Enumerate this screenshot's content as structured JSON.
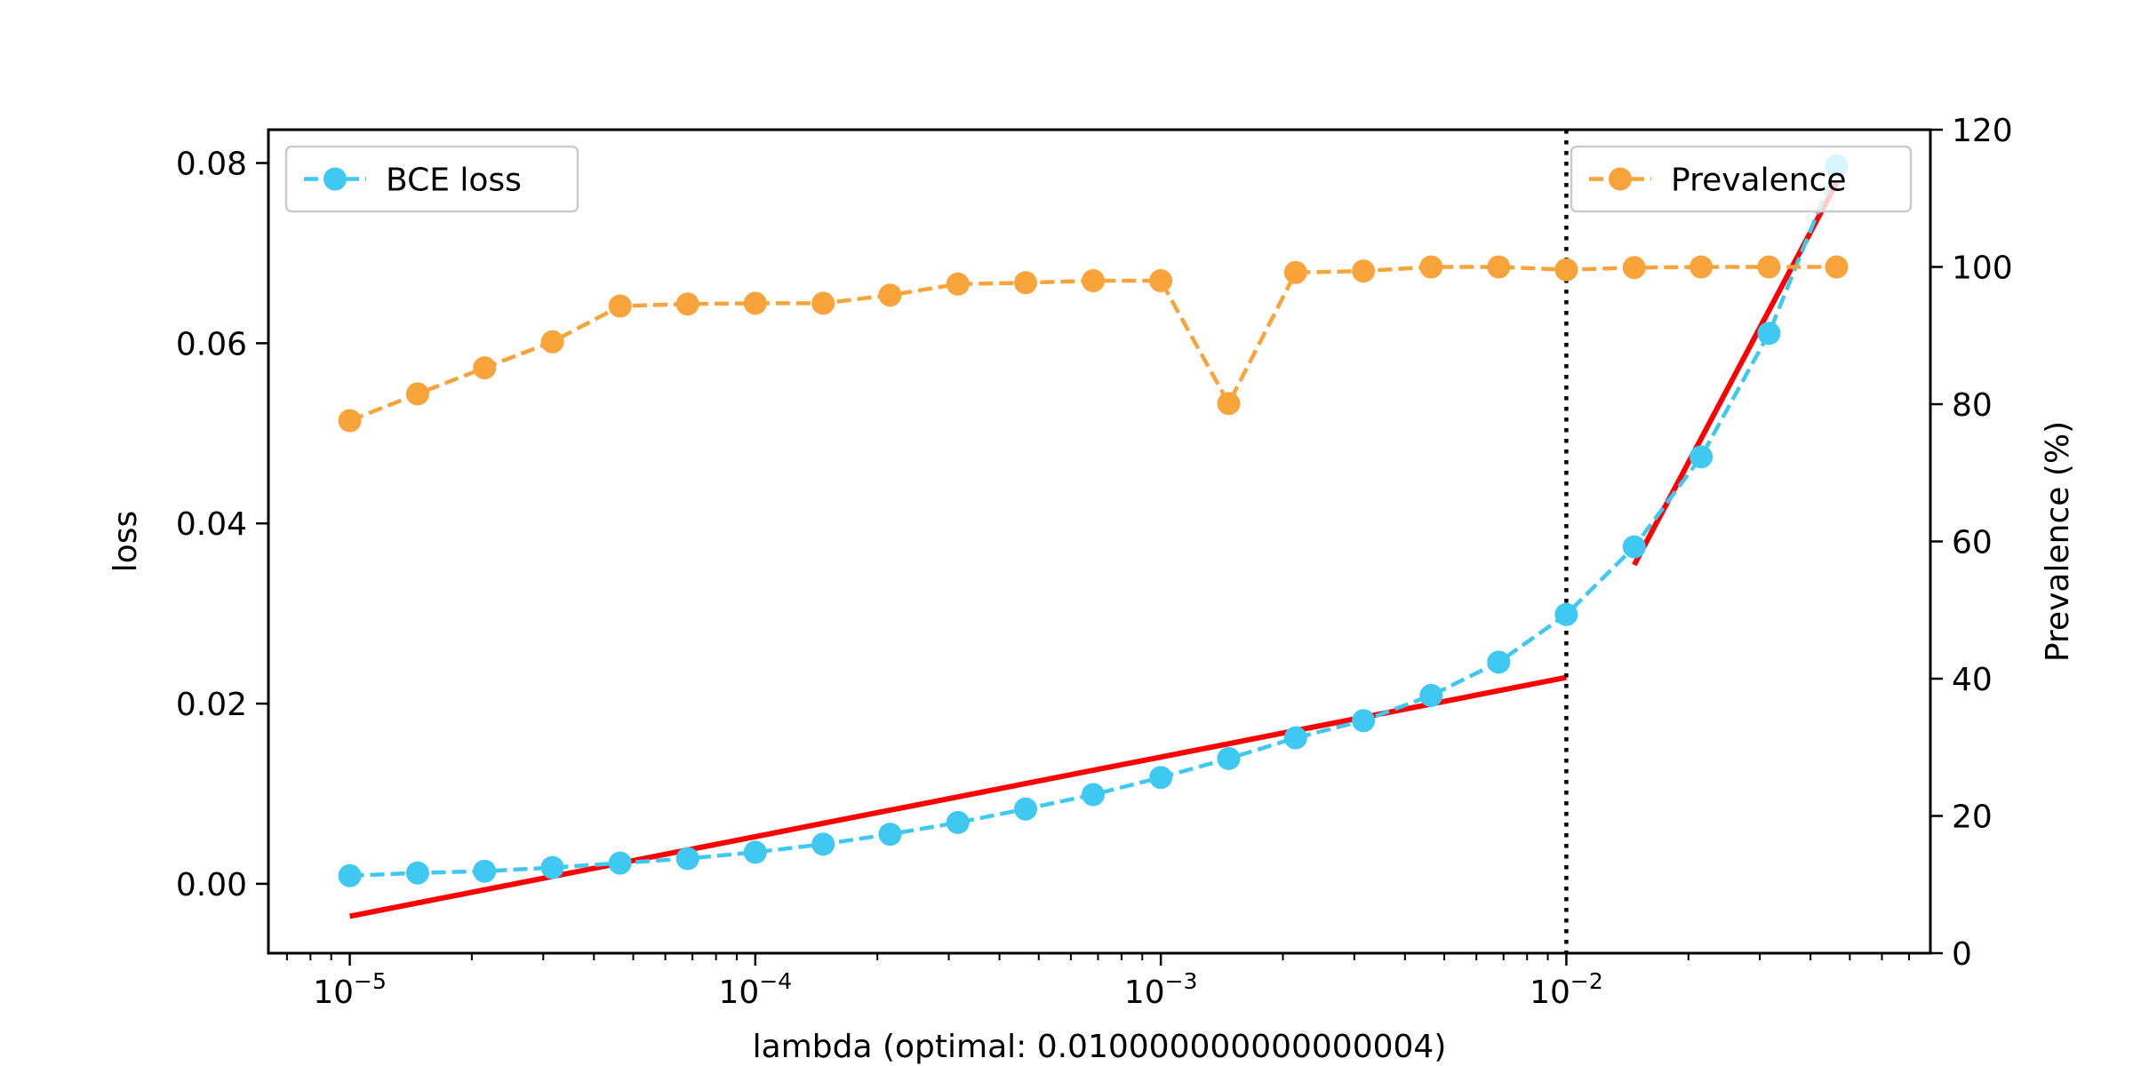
{
  "chart_data": {
    "type": "line",
    "title": "",
    "xlabel": "lambda (optimal: 0.010000000000000004)",
    "ylabel_left": "loss",
    "ylabel_right": "Prevalence (%)",
    "xscale": "log",
    "xlim": [
      6.3e-06,
      0.079
    ],
    "ylim_left": [
      -0.0077,
      0.0837
    ],
    "ylim_right": [
      0,
      120
    ],
    "x_ticks": [
      {
        "value": 1e-05,
        "base": "10",
        "exp": "−5"
      },
      {
        "value": 0.0001,
        "base": "10",
        "exp": "−4"
      },
      {
        "value": 0.001,
        "base": "10",
        "exp": "−3"
      },
      {
        "value": 0.01,
        "base": "10",
        "exp": "−2"
      }
    ],
    "y_left_ticks": [
      "0.00",
      "0.02",
      "0.04",
      "0.06",
      "0.08"
    ],
    "y_right_ticks": [
      "0",
      "20",
      "40",
      "60",
      "80",
      "100",
      "120"
    ],
    "grid": false,
    "x": [
      1e-05,
      1.47e-05,
      2.15e-05,
      3.16e-05,
      4.64e-05,
      6.81e-05,
      0.0001,
      0.000147,
      0.000215,
      0.000316,
      0.000464,
      0.000681,
      0.001,
      0.00147,
      0.00215,
      0.00316,
      0.00464,
      0.00681,
      0.01,
      0.0147,
      0.0215,
      0.0316,
      0.0464
    ],
    "series": [
      {
        "name": "BCE loss",
        "axis": "left",
        "color": "#3ec8f2",
        "style": "dashed-markers",
        "values": [
          0.0009,
          0.0012,
          0.0014,
          0.0018,
          0.0023,
          0.0028,
          0.0035,
          0.0044,
          0.0055,
          0.0068,
          0.0083,
          0.0099,
          0.0118,
          0.0139,
          0.0162,
          0.0181,
          0.0209,
          0.0246,
          0.0299,
          0.0374,
          0.0474,
          0.0611,
          0.0797
        ]
      },
      {
        "name": "Prevalence",
        "axis": "right",
        "color": "#f9a43a",
        "style": "dashed-markers",
        "values": [
          77.6,
          81.5,
          85.3,
          89.1,
          94.3,
          94.6,
          94.7,
          94.7,
          95.9,
          97.5,
          97.7,
          98.0,
          98.0,
          80.1,
          99.2,
          99.4,
          100.0,
          100.0,
          99.6,
          99.9,
          100.0,
          100.0,
          100.0
        ]
      }
    ],
    "fit_lines": [
      {
        "color": "#ff0000",
        "axis": "left",
        "x": [
          1e-05,
          0.01
        ],
        "y": [
          -0.0036,
          0.0229
        ]
      },
      {
        "color": "#ff0000",
        "axis": "left",
        "x": [
          0.0147,
          0.0464
        ],
        "y": [
          0.0354,
          0.0778
        ]
      }
    ],
    "vline": {
      "x": 0.01,
      "style": "dotted",
      "color": "#000000"
    },
    "legends": [
      {
        "series": "BCE loss",
        "placement": "upper-left"
      },
      {
        "series": "Prevalence",
        "placement": "upper-right"
      }
    ]
  }
}
